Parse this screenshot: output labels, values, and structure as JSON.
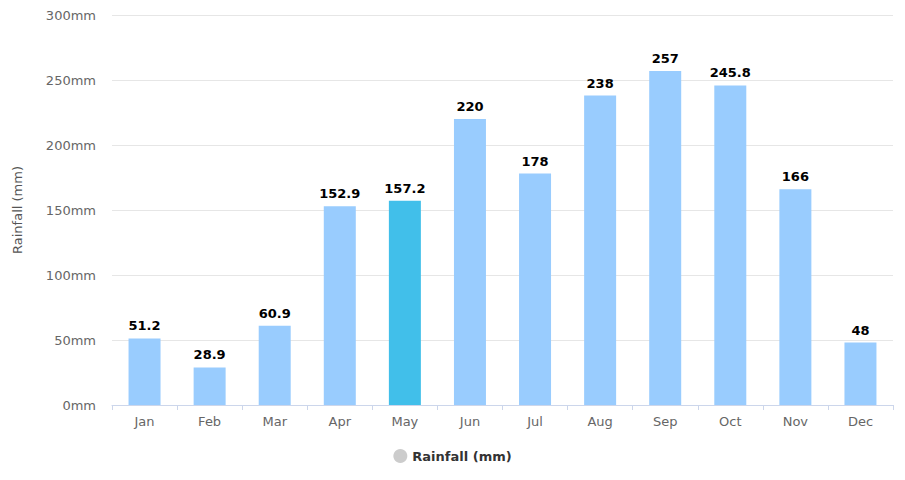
{
  "chart_data": {
    "type": "bar",
    "y_label": "Rainfall (mm)",
    "categories": [
      "Jan",
      "Feb",
      "Mar",
      "Apr",
      "May",
      "Jun",
      "Jul",
      "Aug",
      "Sep",
      "Oct",
      "Nov",
      "Dec"
    ],
    "series": [
      {
        "name": "Rainfall (mm)",
        "values": [
          51.2,
          28.9,
          60.9,
          152.9,
          157.2,
          220,
          178,
          238,
          257,
          245.8,
          166,
          48
        ],
        "colors": [
          "#99ccfe",
          "#99ccfe",
          "#99ccfe",
          "#99ccfe",
          "#41bfea",
          "#99ccfe",
          "#99ccfe",
          "#99ccfe",
          "#99ccfe",
          "#99ccfe",
          "#99ccfe",
          "#99ccfe"
        ]
      }
    ],
    "ylim": [
      0,
      300
    ],
    "yticks": [
      {
        "value": 0,
        "label": "0mm"
      },
      {
        "value": 50,
        "label": "50mm"
      },
      {
        "value": 100,
        "label": "100mm"
      },
      {
        "value": 150,
        "label": "150mm"
      },
      {
        "value": 200,
        "label": "200mm"
      },
      {
        "value": 250,
        "label": "250mm"
      },
      {
        "value": 300,
        "label": "300mm"
      }
    ],
    "grid": true,
    "data_labels": true,
    "legend": "bottom"
  }
}
